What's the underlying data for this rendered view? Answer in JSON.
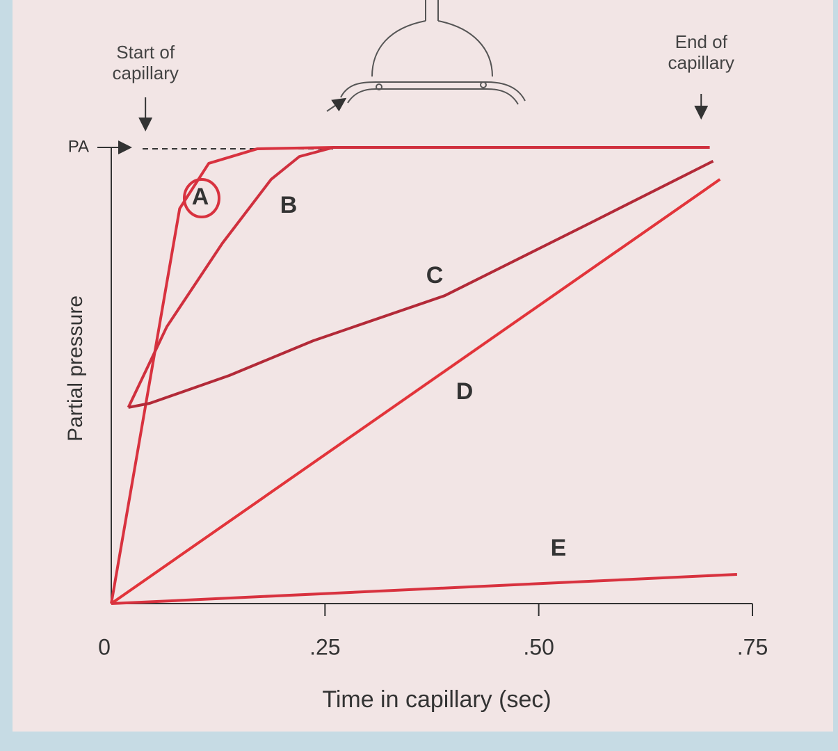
{
  "chart_data": {
    "type": "line",
    "x_label": "Time in capillary (sec)",
    "y_label": "Partial pressure",
    "annotations": [
      {
        "text": "Start of capillary",
        "x": 0.04
      },
      {
        "text": "End of capillary",
        "x": 0.69
      }
    ],
    "xlim": [
      0,
      0.75
    ],
    "ylim": [
      0,
      100
    ],
    "xticks": [
      0,
      {
        "value": 0.25,
        "label": ".25"
      },
      {
        "value": 0.5,
        "label": ".50"
      },
      {
        "value": 0.75,
        "label": ".75"
      }
    ],
    "yticks": [
      {
        "value": 100,
        "label": "PA"
      }
    ],
    "series": [
      {
        "name": "A",
        "color": "#d8323f",
        "x": [
          0,
          0.08,
          0.114,
          0.171,
          0.26,
          0.7
        ],
        "values": [
          0,
          86.6,
          96.5,
          99.7,
          100,
          100
        ]
      },
      {
        "name": "B",
        "color": "#d0303e",
        "x": [
          0.02,
          0.065,
          0.13,
          0.187,
          0.22,
          0.26,
          0.7
        ],
        "values": [
          43,
          60.7,
          79,
          93,
          98,
          100,
          100
        ]
      },
      {
        "name": "C",
        "color": "#b32a38",
        "x": [
          0.02,
          0.045,
          0.138,
          0.236,
          0.39,
          0.561,
          0.704
        ],
        "values": [
          43,
          43.9,
          50,
          57.6,
          67.5,
          83.5,
          97
        ]
      },
      {
        "name": "D",
        "color": "#e2343a",
        "x": [
          0,
          0.712
        ],
        "values": [
          0,
          93
        ]
      },
      {
        "name": "E",
        "color": "#d8323f",
        "x": [
          0,
          0.732
        ],
        "values": [
          0,
          6.4
        ]
      }
    ]
  }
}
